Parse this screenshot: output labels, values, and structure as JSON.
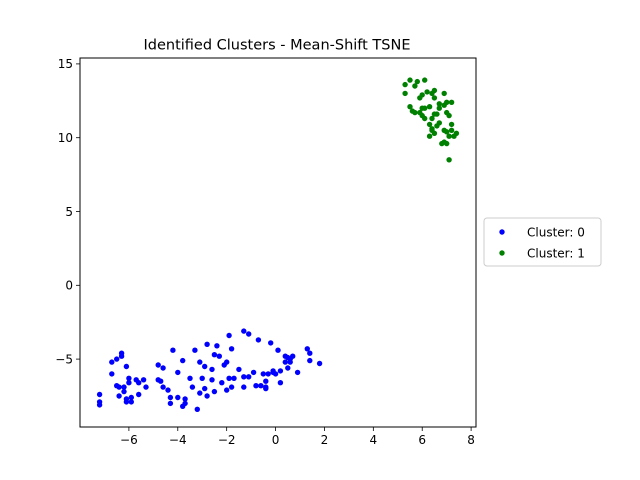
{
  "chart_data": {
    "type": "scatter",
    "title": "Identified Clusters - Mean-Shift TSNE",
    "xlabel": "",
    "ylabel": "",
    "xlim": [
      -8.0,
      8.2
    ],
    "ylim": [
      -9.6,
      15.4
    ],
    "xticks": [
      -6,
      -4,
      -2,
      0,
      2,
      4,
      6,
      8
    ],
    "yticks": [
      -5,
      0,
      5,
      10,
      15
    ],
    "grid": false,
    "legend_position": "outside-right",
    "series": [
      {
        "name": "Cluster: 0",
        "color": "#0000ff",
        "points": [
          [
            -7.2,
            -7.4
          ],
          [
            -7.2,
            -7.9
          ],
          [
            -7.2,
            -8.1
          ],
          [
            -6.7,
            -5.2
          ],
          [
            -6.7,
            -6.0
          ],
          [
            -6.5,
            -6.8
          ],
          [
            -6.5,
            -5.0
          ],
          [
            -6.4,
            -7.5
          ],
          [
            -6.4,
            -6.9
          ],
          [
            -6.3,
            -4.8
          ],
          [
            -6.3,
            -4.6
          ],
          [
            -6.2,
            -6.9
          ],
          [
            -6.2,
            -7.2
          ],
          [
            -6.1,
            -5.5
          ],
          [
            -6.1,
            -7.7
          ],
          [
            -6.1,
            -7.9
          ],
          [
            -6.0,
            -6.3
          ],
          [
            -6.0,
            -6.6
          ],
          [
            -5.9,
            -7.9
          ],
          [
            -5.9,
            -7.6
          ],
          [
            -5.7,
            -6.4
          ],
          [
            -5.6,
            -7.4
          ],
          [
            -5.6,
            -6.6
          ],
          [
            -5.4,
            -6.4
          ],
          [
            -5.3,
            -6.9
          ],
          [
            -4.8,
            -6.4
          ],
          [
            -4.8,
            -5.4
          ],
          [
            -4.7,
            -6.5
          ],
          [
            -4.6,
            -6.9
          ],
          [
            -4.6,
            -5.6
          ],
          [
            -4.4,
            -7.1
          ],
          [
            -4.3,
            -7.6
          ],
          [
            -4.3,
            -8.0
          ],
          [
            -4.2,
            -4.4
          ],
          [
            -4.0,
            -5.9
          ],
          [
            -4.0,
            -7.6
          ],
          [
            -3.8,
            -5.1
          ],
          [
            -3.8,
            -8.2
          ],
          [
            -3.7,
            -7.7
          ],
          [
            -3.7,
            -8.0
          ],
          [
            -3.5,
            -6.3
          ],
          [
            -3.4,
            -6.9
          ],
          [
            -3.3,
            -4.4
          ],
          [
            -3.2,
            -8.4
          ],
          [
            -3.1,
            -5.2
          ],
          [
            -3.1,
            -7.3
          ],
          [
            -3.0,
            -6.3
          ],
          [
            -2.9,
            -5.5
          ],
          [
            -2.9,
            -7.0
          ],
          [
            -2.8,
            -4.0
          ],
          [
            -2.8,
            -7.5
          ],
          [
            -2.6,
            -5.7
          ],
          [
            -2.6,
            -6.4
          ],
          [
            -2.5,
            -7.2
          ],
          [
            -2.5,
            -4.7
          ],
          [
            -2.4,
            -4.1
          ],
          [
            -2.3,
            -4.8
          ],
          [
            -2.2,
            -6.6
          ],
          [
            -2.1,
            -5.4
          ],
          [
            -2.0,
            -5.2
          ],
          [
            -2.0,
            -7.1
          ],
          [
            -1.9,
            -6.3
          ],
          [
            -1.9,
            -3.4
          ],
          [
            -1.8,
            -6.9
          ],
          [
            -1.8,
            -4.3
          ],
          [
            -1.7,
            -6.3
          ],
          [
            -1.5,
            -5.7
          ],
          [
            -1.3,
            -6.2
          ],
          [
            -1.3,
            -3.1
          ],
          [
            -1.3,
            -6.9
          ],
          [
            -1.1,
            -3.3
          ],
          [
            -1.1,
            -6.2
          ],
          [
            -0.9,
            -5.9
          ],
          [
            -0.8,
            -6.8
          ],
          [
            -0.7,
            -3.7
          ],
          [
            -0.6,
            -6.8
          ],
          [
            -0.5,
            -6.0
          ],
          [
            -0.4,
            -6.9
          ],
          [
            -0.4,
            -6.5
          ],
          [
            -0.4,
            -7.0
          ],
          [
            -0.3,
            -6.0
          ],
          [
            -0.2,
            -3.9
          ],
          [
            -0.1,
            -5.8
          ],
          [
            -0.1,
            -5.9
          ],
          [
            0.0,
            -6.0
          ],
          [
            0.1,
            -4.4
          ],
          [
            0.2,
            -5.8
          ],
          [
            0.2,
            -6.6
          ],
          [
            0.4,
            -5.2
          ],
          [
            0.4,
            -4.8
          ],
          [
            0.5,
            -5.6
          ],
          [
            0.5,
            -4.9
          ],
          [
            0.6,
            -5.0
          ],
          [
            0.6,
            -5.2
          ],
          [
            0.7,
            -4.8
          ],
          [
            0.9,
            -5.9
          ],
          [
            1.3,
            -4.3
          ],
          [
            1.4,
            -4.6
          ],
          [
            1.4,
            -5.1
          ],
          [
            1.8,
            -5.3
          ]
        ]
      },
      {
        "name": "Cluster: 1",
        "color": "#008000",
        "points": [
          [
            5.3,
            13.6
          ],
          [
            5.3,
            13.0
          ],
          [
            5.5,
            12.1
          ],
          [
            5.5,
            13.9
          ],
          [
            5.6,
            11.8
          ],
          [
            5.7,
            13.5
          ],
          [
            5.7,
            11.7
          ],
          [
            5.8,
            13.8
          ],
          [
            5.9,
            12.7
          ],
          [
            5.9,
            11.7
          ],
          [
            6.0,
            12.9
          ],
          [
            6.0,
            12.0
          ],
          [
            6.0,
            11.5
          ],
          [
            6.1,
            13.9
          ],
          [
            6.1,
            12.0
          ],
          [
            6.1,
            11.3
          ],
          [
            6.2,
            13.1
          ],
          [
            6.3,
            12.1
          ],
          [
            6.3,
            10.9
          ],
          [
            6.3,
            10.1
          ],
          [
            6.4,
            13.0
          ],
          [
            6.4,
            11.3
          ],
          [
            6.4,
            10.6
          ],
          [
            6.4,
            10.5
          ],
          [
            6.5,
            13.2
          ],
          [
            6.5,
            12.7
          ],
          [
            6.5,
            11.6
          ],
          [
            6.5,
            10.3
          ],
          [
            6.6,
            11.6
          ],
          [
            6.6,
            10.8
          ],
          [
            6.7,
            12.3
          ],
          [
            6.7,
            12.0
          ],
          [
            6.7,
            11.0
          ],
          [
            6.8,
            9.6
          ],
          [
            6.9,
            13.0
          ],
          [
            6.9,
            12.2
          ],
          [
            6.9,
            10.5
          ],
          [
            6.9,
            9.7
          ],
          [
            7.0,
            11.7
          ],
          [
            7.0,
            10.4
          ],
          [
            7.0,
            9.6
          ],
          [
            7.0,
            12.4
          ],
          [
            7.1,
            10.1
          ],
          [
            7.1,
            8.5
          ],
          [
            7.1,
            11.5
          ],
          [
            7.2,
            10.9
          ],
          [
            7.2,
            10.5
          ],
          [
            7.2,
            12.4
          ],
          [
            7.3,
            10.1
          ],
          [
            7.4,
            10.3
          ]
        ]
      }
    ]
  }
}
